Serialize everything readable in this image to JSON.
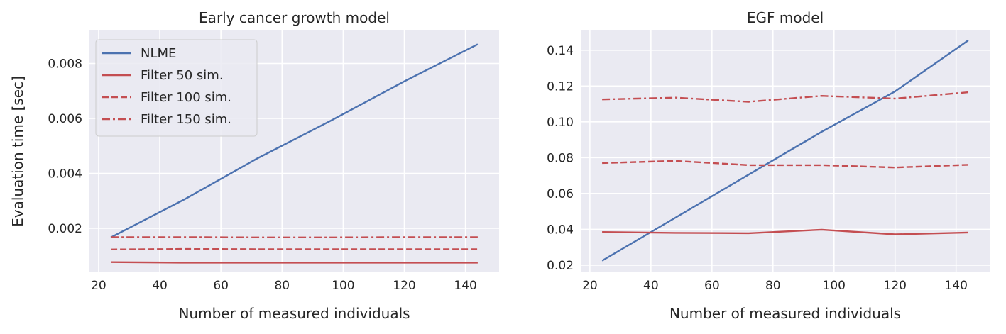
{
  "chart_data": [
    {
      "type": "line",
      "title": "Early cancer growth model",
      "xlabel": "Number of measured individuals",
      "ylabel": "Evaluation time [sec]",
      "xlim": [
        17,
        151
      ],
      "ylim": [
        0.0004,
        0.0092
      ],
      "xticks": [
        20,
        40,
        60,
        80,
        100,
        120,
        140
      ],
      "yticks": [
        0.002,
        0.004,
        0.006,
        0.008
      ],
      "ytick_labels": [
        "0.002",
        "0.004",
        "0.006",
        "0.008"
      ],
      "grid": true,
      "legend": "upper-left",
      "x": [
        24,
        48,
        72,
        96,
        120,
        144
      ],
      "series": [
        {
          "name": "NLME",
          "style": "solid",
          "color": "#4c72b0",
          "values": [
            0.00167,
            0.00305,
            0.00455,
            0.00592,
            0.00735,
            0.0087
          ]
        },
        {
          "name": "Filter 50 sim.",
          "style": "solid",
          "color": "#c44e52",
          "values": [
            0.00077,
            0.00075,
            0.00075,
            0.00075,
            0.00075,
            0.00075
          ]
        },
        {
          "name": "Filter 100 sim.",
          "style": "dashed",
          "color": "#c44e52",
          "values": [
            0.00123,
            0.00125,
            0.00124,
            0.00124,
            0.00124,
            0.00124
          ]
        },
        {
          "name": "Filter 150 sim.",
          "style": "dashdot",
          "color": "#c44e52",
          "values": [
            0.00168,
            0.00168,
            0.00167,
            0.00167,
            0.00168,
            0.00168
          ]
        }
      ]
    },
    {
      "type": "line",
      "title": "EGF model",
      "xlabel": "Number of measured individuals",
      "ylabel": "",
      "xlim": [
        17,
        151
      ],
      "ylim": [
        0.016,
        0.151
      ],
      "xticks": [
        20,
        40,
        60,
        80,
        100,
        120,
        140
      ],
      "yticks": [
        0.02,
        0.04,
        0.06,
        0.08,
        0.1,
        0.12,
        0.14
      ],
      "ytick_labels": [
        "0.02",
        "0.04",
        "0.06",
        "0.08",
        "0.10",
        "0.12",
        "0.14"
      ],
      "grid": true,
      "x": [
        24,
        48,
        72,
        96,
        120,
        144
      ],
      "series": [
        {
          "style": "solid",
          "color": "#4c72b0",
          "values": [
            0.0225,
            0.0465,
            0.0705,
            0.0945,
            0.117,
            0.1455
          ]
        },
        {
          "style": "solid",
          "color": "#c44e52",
          "values": [
            0.0385,
            0.038,
            0.0378,
            0.0398,
            0.0372,
            0.0382
          ]
        },
        {
          "style": "dashed",
          "color": "#c44e52",
          "values": [
            0.077,
            0.0782,
            0.0758,
            0.0758,
            0.0745,
            0.076
          ]
        },
        {
          "style": "dashdot",
          "color": "#c44e52",
          "values": [
            0.1125,
            0.1135,
            0.1112,
            0.1145,
            0.113,
            0.1165
          ]
        }
      ]
    }
  ]
}
